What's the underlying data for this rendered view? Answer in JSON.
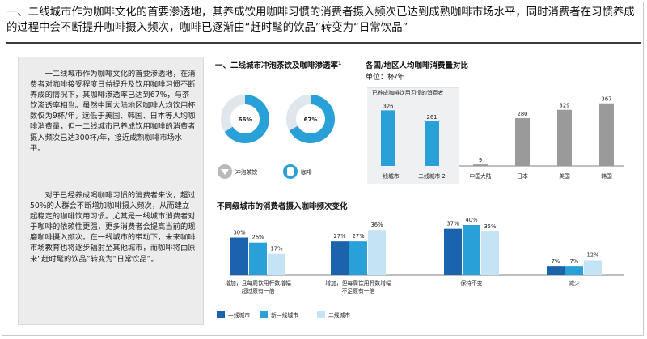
{
  "headline": "一、二线城市作为咖啡文化的首要渗透地，其养成饮用咖啡习惯的消费者摄入频次已达到成熟咖啡市场水平，同时消费者在习惯养成的过程中会不断提升咖啡摄入频次，咖啡已逐渐由“赶时髦的饮品”转变为“日常饮品”",
  "left_panel": {
    "paragraph1": "一二线城市作为咖啡文化的首要渗透地，在消费者对咖啡接受程度日益提升及饮用咖啡习惯不断养成的情况下，其咖啡渗透率已达到67%，与茶饮渗透率相当。虽然中国大陆地区咖啡人均饮用杯数仅为9杯/年，远低于美国、韩国、日本等人均咖啡消费量，但一二线城市已养成饮用咖啡的消费者摄入频次已达300杯/年，接近成熟咖啡市场水平。",
    "paragraph2": "对于已经养成喝咖啡习惯的消费者来说，超过50%的人群会不断增加咖啡摄入频次，从而建立起稳定的咖啡饮用习惯。尤其是一线城市消费者对于咖啡的依赖性更强，更多消费者会提高当前的现磨咖啡摄入频次。在一线城市的带动下，未来咖啡市场教育也将逐步辐射至其他城市，而咖啡将由原来“赶时髦的饮品”转变为“日常饮品”。"
  },
  "colors": {
    "dark": "#1c63ad",
    "mid": "#2aa0d8",
    "light": "#c4e4f5",
    "gray": "#9a9a9a",
    "track": "#dfe6ec"
  },
  "chart_data": [
    {
      "type": "donut",
      "title": "一、二线城市冲泡茶饮及咖啡渗透率",
      "title_sup": "1",
      "series": [
        {
          "name": "冲泡茶饮",
          "value": 66,
          "label": "66%",
          "icon": "tea-cup-icon"
        },
        {
          "name": "咖啡",
          "value": 67,
          "label": "67%",
          "icon": "coffee-cup-icon"
        }
      ]
    },
    {
      "type": "bar",
      "title": "各国/地区人均咖啡消费量对比",
      "unit_label": "单位：杯/年",
      "annotation": "已养成咖啡饮用习惯的消费者",
      "categories": [
        "一线城市",
        "二线城市 2",
        "中国大陆",
        "日本",
        "美国",
        "韩国"
      ],
      "values": [
        326,
        261,
        9,
        280,
        329,
        367
      ],
      "highlight": [
        true,
        true,
        false,
        false,
        false,
        false
      ],
      "ylim": [
        0,
        380
      ]
    },
    {
      "type": "bar",
      "title": "不同级城市的消费者摄入咖啡频次变化",
      "categories": [
        "增加，且每周饮用杯数增幅超过原有一倍",
        "增加，但每周饮用杯数增幅不足原有一倍",
        "保持不变",
        "减少"
      ],
      "series": [
        {
          "name": "一线城市",
          "values": [
            30,
            27,
            37,
            7
          ],
          "labels": [
            "30%",
            "27%",
            "37%",
            "7%"
          ]
        },
        {
          "name": "新一线城市",
          "values": [
            26,
            27,
            40,
            7
          ],
          "labels": [
            "26%",
            "27%",
            "40%",
            "7%"
          ]
        },
        {
          "name": "二线城市",
          "values": [
            17,
            36,
            35,
            12
          ],
          "labels": [
            "17%",
            "36%",
            "35%",
            "12%"
          ]
        }
      ],
      "ylim": [
        0,
        40
      ],
      "legend": "bottom"
    }
  ]
}
